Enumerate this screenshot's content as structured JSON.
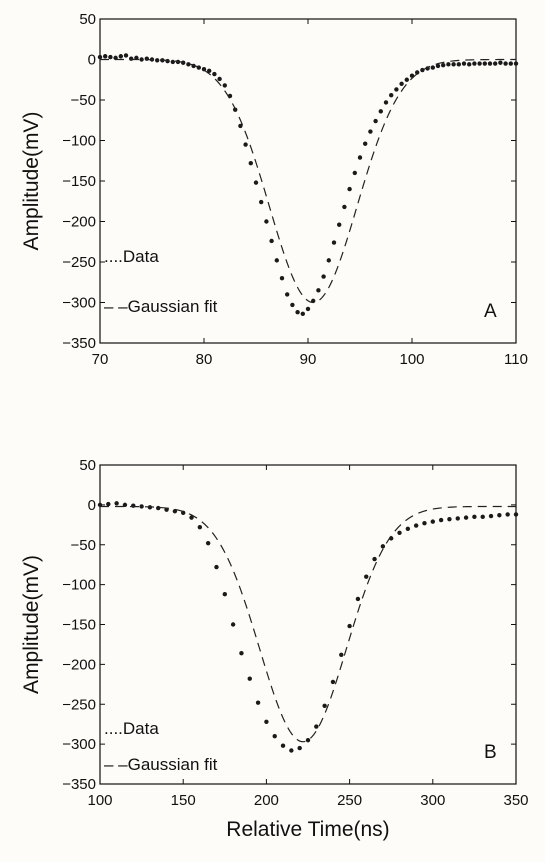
{
  "chart_data": [
    {
      "type": "scatter",
      "panel_label": "A",
      "xlabel": "",
      "ylabel": "Amplitude(mV)",
      "xlim": [
        70,
        110
      ],
      "ylim": [
        -350,
        50
      ],
      "xticks": [
        70,
        80,
        90,
        100,
        110
      ],
      "yticks": [
        50,
        0,
        -50,
        -100,
        -150,
        -200,
        -250,
        -300,
        -350
      ],
      "legend": {
        "position": "bottom-left",
        "entries": [
          "....Data",
          "– –Gaussian fit"
        ]
      },
      "grid": false,
      "series": [
        {
          "name": "Data",
          "style": "dots",
          "x": [
            70.0,
            70.5,
            71.0,
            71.5,
            72.0,
            72.5,
            73.0,
            73.5,
            74.0,
            74.5,
            75.0,
            75.5,
            76.0,
            76.5,
            77.0,
            77.5,
            78.0,
            78.5,
            79.0,
            79.5,
            80.0,
            80.5,
            81.0,
            81.5,
            82.0,
            82.5,
            83.0,
            83.5,
            84.0,
            84.5,
            85.0,
            85.5,
            86.0,
            86.5,
            87.0,
            87.5,
            88.0,
            88.5,
            89.0,
            89.5,
            90.0,
            90.5,
            91.0,
            91.5,
            92.0,
            92.5,
            93.0,
            93.5,
            94.0,
            94.5,
            95.0,
            95.5,
            96.0,
            96.5,
            97.0,
            97.5,
            98.0,
            98.5,
            99.0,
            99.5,
            100.0,
            100.5,
            101.0,
            101.5,
            102.0,
            102.5,
            103.0,
            103.5,
            104.0,
            104.5,
            105.0,
            105.5,
            106.0,
            106.5,
            107.0,
            107.5,
            108.0,
            108.5,
            109.0,
            109.5,
            110.0
          ],
          "y": [
            3,
            4,
            3,
            2,
            4,
            5,
            1,
            2,
            0,
            1,
            0,
            -1,
            -1,
            -2,
            -3,
            -3,
            -4,
            -6,
            -8,
            -10,
            -12,
            -14,
            -18,
            -24,
            -32,
            -45,
            -62,
            -82,
            -105,
            -128,
            -152,
            -176,
            -200,
            -224,
            -248,
            -270,
            -290,
            -303,
            -312,
            -314,
            -308,
            -298,
            -285,
            -268,
            -248,
            -226,
            -204,
            -182,
            -160,
            -140,
            -121,
            -104,
            -89,
            -76,
            -64,
            -53,
            -44,
            -37,
            -30,
            -25,
            -20,
            -16,
            -13,
            -11,
            -10,
            -8,
            -7,
            -6,
            -6,
            -6,
            -5,
            -6,
            -5,
            -5,
            -5,
            -5,
            -5,
            -4,
            -5,
            -5,
            -5
          ]
        },
        {
          "name": "Gaussian fit",
          "style": "dashed",
          "amplitude": -300,
          "center": 90.5,
          "sigma": 4.2,
          "baseline": 0
        }
      ]
    },
    {
      "type": "scatter",
      "panel_label": "B",
      "xlabel": "Relative Time(ns)",
      "ylabel": "Amplitude(mV)",
      "xlim": [
        100,
        350
      ],
      "ylim": [
        -350,
        50
      ],
      "xticks": [
        100,
        150,
        200,
        250,
        300,
        350
      ],
      "yticks": [
        50,
        0,
        -50,
        -100,
        -150,
        -200,
        -250,
        -300,
        -350
      ],
      "legend": {
        "position": "bottom-left",
        "entries": [
          "....Data",
          "– –Gaussian fit"
        ]
      },
      "grid": false,
      "series": [
        {
          "name": "Data",
          "style": "dots",
          "x": [
            100,
            105,
            110,
            115,
            120,
            125,
            130,
            135,
            140,
            145,
            150,
            155,
            160,
            165,
            170,
            175,
            180,
            185,
            190,
            195,
            200,
            205,
            210,
            215,
            220,
            225,
            230,
            235,
            240,
            245,
            250,
            255,
            260,
            265,
            270,
            275,
            280,
            285,
            290,
            295,
            300,
            305,
            310,
            315,
            320,
            325,
            330,
            335,
            340,
            345,
            350
          ],
          "y": [
            0,
            1,
            2,
            0,
            -1,
            -2,
            -3,
            -4,
            -6,
            -8,
            -10,
            -16,
            -28,
            -48,
            -78,
            -112,
            -150,
            -186,
            -218,
            -248,
            -272,
            -290,
            -302,
            -308,
            -305,
            -295,
            -278,
            -252,
            -222,
            -188,
            -152,
            -118,
            -90,
            -68,
            -52,
            -42,
            -35,
            -30,
            -26,
            -23,
            -21,
            -19,
            -18,
            -17,
            -16,
            -15,
            -15,
            -14,
            -13,
            -12,
            -12
          ]
        },
        {
          "name": "Gaussian fit",
          "style": "dashed",
          "amplitude": -295,
          "center": 222,
          "sigma": 26,
          "baseline": -2
        }
      ]
    }
  ]
}
